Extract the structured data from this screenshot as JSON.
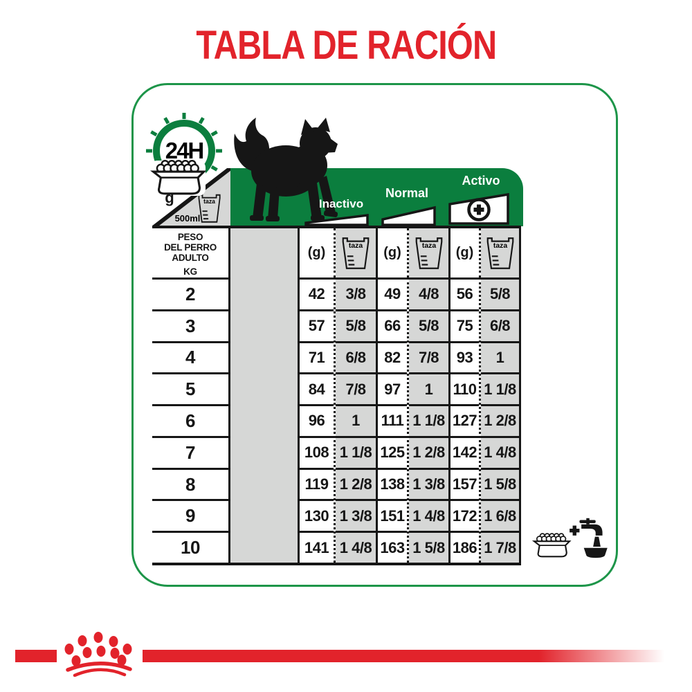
{
  "title": "TABLA DE RACIÓN",
  "colors": {
    "green": "#0b7e3e",
    "red": "#e2232b",
    "cell_gray": "#d6d7d6"
  },
  "header_icons": {
    "clock_label": "24H",
    "grams_label": "g",
    "cup_volume": "500ml",
    "cup_label": "taza"
  },
  "chart_data": {
    "type": "table",
    "title": "TABLA DE RACIÓN",
    "row_header_lines": [
      "PESO",
      "DEL PERRO",
      "ADULTO",
      "KG"
    ],
    "column_groups": [
      "Inactivo",
      "Normal",
      "Activo"
    ],
    "unit_grams": "(g)",
    "unit_cup": "taza",
    "weights_kg": [
      2,
      3,
      4,
      5,
      6,
      7,
      8,
      9,
      10
    ],
    "rows": [
      {
        "weight": "2",
        "values": [
          "42",
          "3/8",
          "49",
          "4/8",
          "56",
          "5/8"
        ]
      },
      {
        "weight": "3",
        "values": [
          "57",
          "5/8",
          "66",
          "5/8",
          "75",
          "6/8"
        ]
      },
      {
        "weight": "4",
        "values": [
          "71",
          "6/8",
          "82",
          "7/8",
          "93",
          "1"
        ]
      },
      {
        "weight": "5",
        "values": [
          "84",
          "7/8",
          "97",
          "1",
          "110",
          "1 1/8"
        ]
      },
      {
        "weight": "6",
        "values": [
          "96",
          "1",
          "111",
          "1 1/8",
          "127",
          "1 2/8"
        ]
      },
      {
        "weight": "7",
        "values": [
          "108",
          "1 1/8",
          "125",
          "1 2/8",
          "142",
          "1 4/8"
        ]
      },
      {
        "weight": "8",
        "values": [
          "119",
          "1 2/8",
          "138",
          "1 3/8",
          "157",
          "1 5/8"
        ]
      },
      {
        "weight": "9",
        "values": [
          "130",
          "1 3/8",
          "151",
          "1 4/8",
          "172",
          "1 6/8"
        ]
      },
      {
        "weight": "10",
        "values": [
          "141",
          "1 4/8",
          "163",
          "1 5/8",
          "186",
          "1 7/8"
        ]
      }
    ]
  }
}
